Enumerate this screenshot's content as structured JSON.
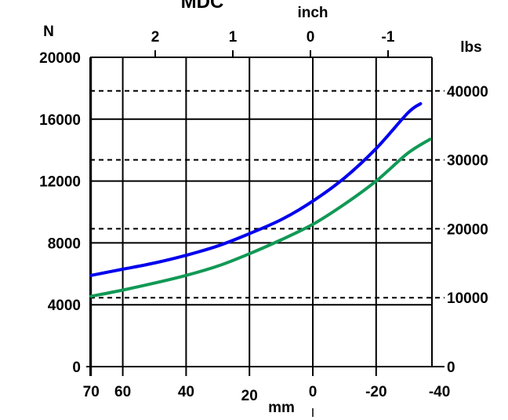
{
  "chart_data": {
    "type": "line",
    "title": "MDC",
    "x_bottom": {
      "label": "mm",
      "reversed": true,
      "range": [
        70,
        -40
      ],
      "ticks": [
        70,
        60,
        40,
        20,
        0,
        -20,
        -40
      ],
      "tick_labels": [
        "70",
        "60",
        "40",
        "20",
        "0",
        "-20",
        "-40"
      ]
    },
    "x_top": {
      "label": "inch",
      "ticks": [
        2,
        1,
        0,
        -1
      ],
      "tick_labels": [
        "2",
        "1",
        "0",
        "-1"
      ]
    },
    "y_left": {
      "label": "N",
      "range": [
        0,
        20000
      ],
      "ticks": [
        0,
        4000,
        8000,
        12000,
        16000,
        20000
      ],
      "tick_labels": [
        "0",
        "4000",
        "8000",
        "12000",
        "16000",
        "20000"
      ]
    },
    "y_right": {
      "label": "lbs",
      "ticks": [
        0,
        10000,
        20000,
        30000,
        40000
      ],
      "tick_labels": [
        "0",
        "10000",
        "20000",
        "30000",
        "40000"
      ]
    },
    "grid": true,
    "series": [
      {
        "color": "#0000ee",
        "x": [
          70,
          60,
          50,
          40,
          30,
          20,
          10,
          0,
          -10,
          -20,
          -30,
          -34
        ],
        "y": [
          5900,
          6300,
          6700,
          7200,
          7800,
          8600,
          9500,
          10700,
          12200,
          14100,
          16400,
          17000
        ]
      },
      {
        "color": "#119955",
        "x": [
          70,
          60,
          50,
          40,
          30,
          20,
          10,
          0,
          -10,
          -20,
          -30,
          -37
        ],
        "y": [
          4550,
          4950,
          5400,
          5900,
          6500,
          7300,
          8200,
          9200,
          10500,
          12000,
          13800,
          14700
        ]
      }
    ]
  }
}
